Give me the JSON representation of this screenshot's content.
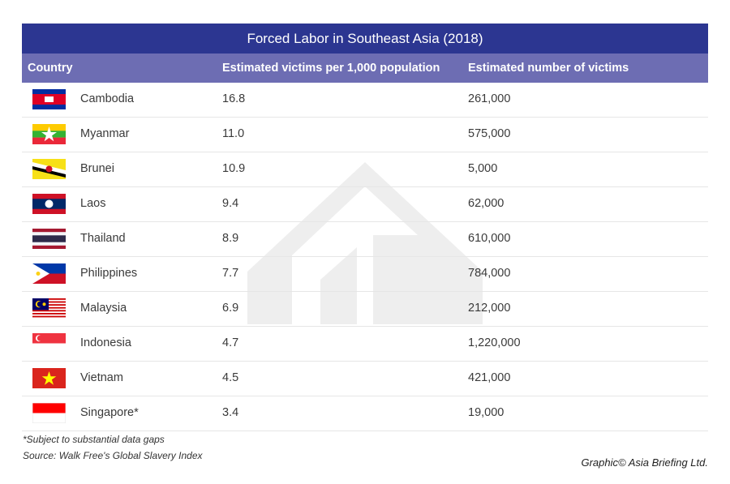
{
  "chart_data": {
    "type": "table",
    "title": "Forced Labor in Southeast Asia (2018)",
    "columns": [
      "Country",
      "Estimated victims per 1,000 population",
      "Estimated number of victims"
    ],
    "rows": [
      {
        "country": "Cambodia",
        "flag": "cambodia-flag",
        "rate": "16.8",
        "victims": "261,000"
      },
      {
        "country": "Myanmar",
        "flag": "myanmar-flag",
        "rate": "11.0",
        "victims": "575,000"
      },
      {
        "country": "Brunei",
        "flag": "brunei-flag",
        "rate": "10.9",
        "victims": "5,000"
      },
      {
        "country": "Laos",
        "flag": "laos-flag",
        "rate": "9.4",
        "victims": "62,000"
      },
      {
        "country": "Thailand",
        "flag": "thailand-flag",
        "rate": "8.9",
        "victims": "610,000"
      },
      {
        "country": "Philippines",
        "flag": "philippines-flag",
        "rate": "7.7",
        "victims": "784,000"
      },
      {
        "country": "Malaysia",
        "flag": "malaysia-flag",
        "rate": "6.9",
        "victims": "212,000"
      },
      {
        "country": "Indonesia",
        "flag": "singapore-flag",
        "rate": "4.7",
        "victims": "1,220,000"
      },
      {
        "country": "Vietnam",
        "flag": "vietnam-flag",
        "rate": "4.5",
        "victims": "421,000"
      },
      {
        "country": "Singapore*",
        "flag": "indonesia-flag",
        "rate": "3.4",
        "victims": "19,000"
      }
    ]
  },
  "footnotes": {
    "note": "*Subject to substantial data gaps",
    "source": "Source: Walk Free's Global Slavery Index"
  },
  "credit": "Graphic© Asia Briefing Ltd.",
  "colors": {
    "title_bar": "#2c3691",
    "header_row": "#6d6db3",
    "watermark": "#eeeeee"
  }
}
